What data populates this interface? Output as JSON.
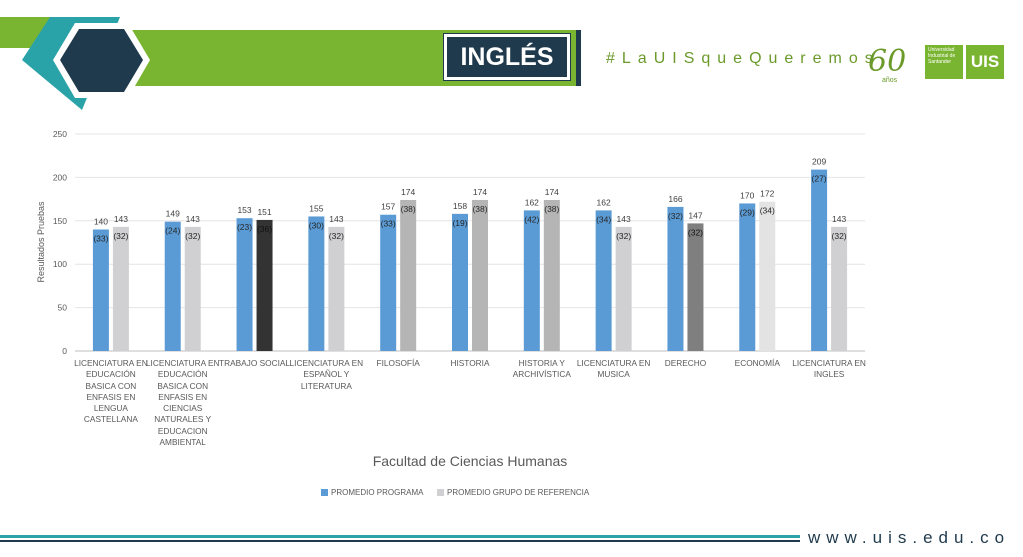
{
  "header": {
    "title": "INGLÉS",
    "hashtag": "#LaUISqueQueremos",
    "anniversary": "60",
    "anniversary_sub": "años",
    "university_logo_text": "Universidad Industrial de Santander",
    "uis_logo": "UIS",
    "brand_green": "#7ab531",
    "brand_dark": "#1f3a4d",
    "brand_teal": "#2aa3a8"
  },
  "footer": {
    "url": "www.uis.edu.co"
  },
  "chart_data": {
    "type": "bar",
    "xlabel": "Facultad de Ciencias Humanas",
    "ylabel": "Resultados Pruebas",
    "ylim": [
      0,
      250
    ],
    "yticks": [
      "0",
      "50",
      "100",
      "150",
      "200",
      "250"
    ],
    "legend_position": "bottom",
    "grid": true,
    "categories": [
      "LICENCIATURA EN EDUCACIÓN BASICA CON ENFASIS EN LENGUA CASTELLANA",
      "LICENCIATURA EN EDUCACIÓN BASICA CON ENFASIS EN CIENCIAS NATURALES Y EDUCACION AMBIENTAL",
      "TRABAJO SOCIAL",
      "LICENCIATURA EN ESPAÑOL Y LITERATURA",
      "FILOSOFÍA",
      "HISTORIA",
      "HISTORIA Y ARCHIVÍSTICA",
      "LICENCIATURA EN MUSICA",
      "DERECHO",
      "ECONOMÍA",
      "LICENCIATURA EN INGLES"
    ],
    "series": [
      {
        "name": "PROMEDIO PROGRAMA",
        "color": "#5b9bd5",
        "values": [
          140,
          149,
          153,
          155,
          157,
          158,
          162,
          162,
          166,
          170,
          209
        ],
        "labels": [
          "140",
          "149",
          "153",
          "155",
          "157",
          "158",
          "162",
          "162",
          "166",
          "170",
          "209"
        ],
        "inner_labels": [
          "(33)",
          "(24)",
          "(23)",
          "(30)",
          "(33)",
          "(19)",
          "(42)",
          "(34)",
          "(32)",
          "(29)",
          "(27)"
        ]
      },
      {
        "name": "PROMEDIO GRUPO DE REFERENCIA",
        "color": "#d0d0d2",
        "bar_colors": [
          "#d0d0d2",
          "#d0d0d2",
          "#333333",
          "#d0d0d2",
          "#b5b5b5",
          "#b5b5b5",
          "#b5b5b5",
          "#d0d0d2",
          "#7f7f7f",
          "#e3e3e3",
          "#d0d0d2"
        ],
        "values": [
          143,
          143,
          151,
          143,
          174,
          174,
          174,
          143,
          147,
          172,
          143
        ],
        "labels": [
          "143",
          "143",
          "151",
          "143",
          "174",
          "174",
          "174",
          "143",
          "147",
          "172",
          "143"
        ],
        "inner_labels": [
          "(32)",
          "(32)",
          "(36)",
          "(32)",
          "(38)",
          "(38)",
          "(38)",
          "(32)",
          "(32)",
          "(34)",
          "(32)"
        ]
      }
    ]
  }
}
